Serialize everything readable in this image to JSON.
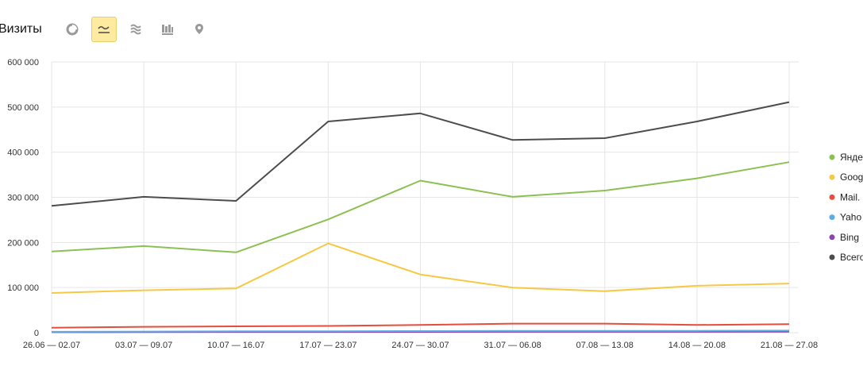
{
  "toolbar": {
    "title": "Визиты",
    "views": [
      {
        "icon": "pie-chart-icon",
        "active": false
      },
      {
        "icon": "line-chart-icon",
        "active": true
      },
      {
        "icon": "area-chart-icon",
        "active": false
      },
      {
        "icon": "bar-chart-icon",
        "active": false
      },
      {
        "icon": "map-pin-icon",
        "active": false
      }
    ]
  },
  "chart_data": {
    "type": "line",
    "title": "",
    "xlabel": "",
    "ylabel": "",
    "ylim": [
      0,
      600000
    ],
    "yticks": [
      0,
      100000,
      200000,
      300000,
      400000,
      500000,
      600000
    ],
    "ytick_labels": [
      "0",
      "100 000",
      "200 000",
      "300 000",
      "400 000",
      "500 000",
      "600 000"
    ],
    "grid": true,
    "legend_position": "right",
    "categories": [
      "26.06 — 02.07",
      "03.07 — 09.07",
      "10.07 — 16.07",
      "17.07 — 23.07",
      "24.07 — 30.07",
      "31.07 — 06.08",
      "07.08 — 13.08",
      "14.08 — 20.08",
      "21.08 — 27.08"
    ],
    "series": [
      {
        "name": "Всего",
        "color": "#4d4d4d",
        "values": [
          281000,
          301000,
          292000,
          468000,
          486000,
          427000,
          431000,
          468000,
          511000
        ]
      },
      {
        "name": "Яндекс",
        "color": "#8cc152",
        "values": [
          180000,
          192000,
          178000,
          251000,
          337000,
          301000,
          315000,
          342000,
          378000
        ]
      },
      {
        "name": "Google",
        "color": "#f6c944",
        "values": [
          88000,
          94000,
          98000,
          198000,
          129000,
          100000,
          92000,
          104000,
          109000
        ]
      },
      {
        "name": "Mail.Ru",
        "color": "#e74c3c",
        "values": [
          11000,
          13000,
          14000,
          15000,
          17000,
          20000,
          20000,
          17000,
          19000
        ]
      },
      {
        "name": "Yahoo",
        "color": "#5dade2",
        "values": [
          2000,
          2500,
          3000,
          3000,
          3500,
          4000,
          4000,
          4000,
          4500
        ]
      },
      {
        "name": "Bing",
        "color": "#8e44ad",
        "values": [
          1000,
          1200,
          1500,
          1500,
          1800,
          2000,
          2000,
          2000,
          2200
        ]
      }
    ],
    "legend": [
      {
        "label": "Янде",
        "color": "#8cc152"
      },
      {
        "label": "Goog",
        "color": "#f6c944"
      },
      {
        "label": "Mail.",
        "color": "#e74c3c"
      },
      {
        "label": "Yaho",
        "color": "#5dade2"
      },
      {
        "label": "Bing",
        "color": "#8e44ad"
      },
      {
        "label": "Всего",
        "color": "#4d4d4d"
      }
    ]
  }
}
